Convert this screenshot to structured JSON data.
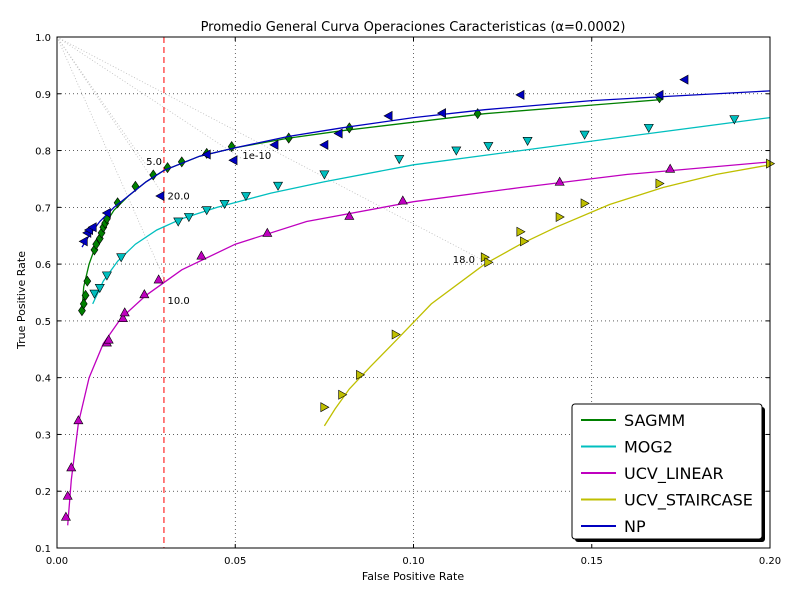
{
  "chart_data": {
    "type": "line",
    "title": "Promedio General Curva Operaciones Caracteristicas (α=0.0002)",
    "xlabel": "False Positive Rate",
    "ylabel": "True Positive Rate",
    "xlim": [
      0.0,
      0.2
    ],
    "ylim": [
      0.1,
      1.0
    ],
    "x_ticks": [
      "0.00",
      "0.05",
      "0.10",
      "0.15",
      "0.20"
    ],
    "y_ticks": [
      "0.1",
      "0.2",
      "0.3",
      "0.4",
      "0.5",
      "0.6",
      "0.7",
      "0.8",
      "0.9",
      "1.0"
    ],
    "grid": true,
    "legend_position": "bottom-right",
    "threshold_line": {
      "x": 0.03,
      "color": "#ff0000",
      "style": "dashed"
    },
    "annotations": [
      {
        "text": "5.0",
        "x": 0.025,
        "y": 0.775
      },
      {
        "text": "1e-10",
        "x": 0.052,
        "y": 0.785
      },
      {
        "text": "20.0",
        "x": 0.031,
        "y": 0.714
      },
      {
        "text": "18.0",
        "x": 0.111,
        "y": 0.602
      },
      {
        "text": "10.0",
        "x": 0.031,
        "y": 0.53
      }
    ],
    "guide_lines": [
      {
        "from": [
          0.0,
          1.0
        ],
        "to": [
          0.052,
          0.785
        ]
      },
      {
        "from": [
          0.0,
          1.0
        ],
        "to": [
          0.03,
          0.72
        ]
      },
      {
        "from": [
          0.0,
          1.0
        ],
        "to": [
          0.12,
          0.605
        ]
      },
      {
        "from": [
          0.0,
          1.0
        ],
        "to": [
          0.03,
          0.575
        ]
      },
      {
        "from": [
          0.0,
          1.0
        ],
        "to": [
          0.025,
          0.775
        ]
      }
    ],
    "series": [
      {
        "name": "SAGMM",
        "color": "#008000",
        "marker": "diamond",
        "curve": [
          [
            0.007,
            0.52
          ],
          [
            0.0075,
            0.56
          ],
          [
            0.009,
            0.6
          ],
          [
            0.011,
            0.635
          ],
          [
            0.013,
            0.665
          ],
          [
            0.016,
            0.695
          ],
          [
            0.02,
            0.72
          ],
          [
            0.025,
            0.745
          ],
          [
            0.03,
            0.765
          ],
          [
            0.04,
            0.79
          ],
          [
            0.05,
            0.805
          ],
          [
            0.065,
            0.822
          ],
          [
            0.08,
            0.835
          ],
          [
            0.1,
            0.85
          ],
          [
            0.12,
            0.865
          ],
          [
            0.15,
            0.88
          ],
          [
            0.17,
            0.89
          ]
        ],
        "points": [
          [
            0.007,
            0.518
          ],
          [
            0.0075,
            0.53
          ],
          [
            0.008,
            0.545
          ],
          [
            0.0085,
            0.57
          ],
          [
            0.0105,
            0.625
          ],
          [
            0.011,
            0.635
          ],
          [
            0.012,
            0.645
          ],
          [
            0.0125,
            0.655
          ],
          [
            0.013,
            0.665
          ],
          [
            0.0135,
            0.672
          ],
          [
            0.014,
            0.68
          ],
          [
            0.017,
            0.708
          ],
          [
            0.022,
            0.737
          ],
          [
            0.027,
            0.757
          ],
          [
            0.031,
            0.77
          ],
          [
            0.035,
            0.78
          ],
          [
            0.042,
            0.795
          ],
          [
            0.049,
            0.807
          ],
          [
            0.065,
            0.822
          ],
          [
            0.082,
            0.84
          ],
          [
            0.118,
            0.865
          ],
          [
            0.169,
            0.893
          ]
        ]
      },
      {
        "name": "MOG2",
        "color": "#00bfbf",
        "marker": "triangle-down",
        "curve": [
          [
            0.01,
            0.53
          ],
          [
            0.013,
            0.57
          ],
          [
            0.017,
            0.605
          ],
          [
            0.022,
            0.635
          ],
          [
            0.028,
            0.66
          ],
          [
            0.035,
            0.68
          ],
          [
            0.045,
            0.7
          ],
          [
            0.06,
            0.725
          ],
          [
            0.075,
            0.745
          ],
          [
            0.1,
            0.775
          ],
          [
            0.13,
            0.8
          ],
          [
            0.16,
            0.825
          ],
          [
            0.2,
            0.858
          ]
        ],
        "points": [
          [
            0.0105,
            0.548
          ],
          [
            0.012,
            0.558
          ],
          [
            0.014,
            0.58
          ],
          [
            0.018,
            0.612
          ],
          [
            0.034,
            0.675
          ],
          [
            0.037,
            0.683
          ],
          [
            0.042,
            0.695
          ],
          [
            0.047,
            0.706
          ],
          [
            0.053,
            0.72
          ],
          [
            0.062,
            0.738
          ],
          [
            0.075,
            0.758
          ],
          [
            0.096,
            0.785
          ],
          [
            0.112,
            0.8
          ],
          [
            0.121,
            0.808
          ],
          [
            0.132,
            0.817
          ],
          [
            0.148,
            0.828
          ],
          [
            0.166,
            0.84
          ],
          [
            0.19,
            0.855
          ]
        ]
      },
      {
        "name": "UCV_LINEAR",
        "color": "#bf00bf",
        "marker": "triangle-up",
        "curve": [
          [
            0.003,
            0.14
          ],
          [
            0.004,
            0.22
          ],
          [
            0.006,
            0.32
          ],
          [
            0.009,
            0.4
          ],
          [
            0.013,
            0.46
          ],
          [
            0.018,
            0.505
          ],
          [
            0.025,
            0.545
          ],
          [
            0.035,
            0.59
          ],
          [
            0.05,
            0.635
          ],
          [
            0.07,
            0.675
          ],
          [
            0.1,
            0.71
          ],
          [
            0.13,
            0.735
          ],
          [
            0.16,
            0.758
          ],
          [
            0.2,
            0.78
          ]
        ],
        "points": [
          [
            0.0025,
            0.155
          ],
          [
            0.003,
            0.192
          ],
          [
            0.004,
            0.242
          ],
          [
            0.006,
            0.325
          ],
          [
            0.014,
            0.462
          ],
          [
            0.0145,
            0.467
          ],
          [
            0.0185,
            0.505
          ],
          [
            0.019,
            0.515
          ],
          [
            0.0245,
            0.547
          ],
          [
            0.0285,
            0.573
          ],
          [
            0.0405,
            0.615
          ],
          [
            0.059,
            0.655
          ],
          [
            0.082,
            0.685
          ],
          [
            0.097,
            0.712
          ],
          [
            0.141,
            0.745
          ],
          [
            0.172,
            0.768
          ]
        ]
      },
      {
        "name": "UCV_STAIRCASE",
        "color": "#bfbf00",
        "marker": "triangle-right",
        "curve": [
          [
            0.075,
            0.315
          ],
          [
            0.078,
            0.345
          ],
          [
            0.082,
            0.38
          ],
          [
            0.088,
            0.42
          ],
          [
            0.095,
            0.465
          ],
          [
            0.105,
            0.53
          ],
          [
            0.12,
            0.6
          ],
          [
            0.13,
            0.635
          ],
          [
            0.14,
            0.665
          ],
          [
            0.155,
            0.705
          ],
          [
            0.17,
            0.735
          ],
          [
            0.185,
            0.758
          ],
          [
            0.2,
            0.775
          ]
        ],
        "points": [
          [
            0.075,
            0.348
          ],
          [
            0.08,
            0.37
          ],
          [
            0.085,
            0.405
          ],
          [
            0.095,
            0.476
          ],
          [
            0.12,
            0.612
          ],
          [
            0.121,
            0.603
          ],
          [
            0.13,
            0.657
          ],
          [
            0.131,
            0.64
          ],
          [
            0.141,
            0.683
          ],
          [
            0.148,
            0.707
          ],
          [
            0.169,
            0.742
          ],
          [
            0.2,
            0.777
          ]
        ]
      },
      {
        "name": "NP",
        "color": "#0000bf",
        "marker": "triangle-left",
        "curve": [
          [
            0.007,
            0.63
          ],
          [
            0.009,
            0.65
          ],
          [
            0.012,
            0.675
          ],
          [
            0.016,
            0.7
          ],
          [
            0.02,
            0.72
          ],
          [
            0.025,
            0.745
          ],
          [
            0.03,
            0.765
          ],
          [
            0.04,
            0.79
          ],
          [
            0.05,
            0.805
          ],
          [
            0.065,
            0.825
          ],
          [
            0.08,
            0.84
          ],
          [
            0.1,
            0.858
          ],
          [
            0.12,
            0.872
          ],
          [
            0.15,
            0.888
          ],
          [
            0.17,
            0.895
          ],
          [
            0.2,
            0.905
          ]
        ],
        "points": [
          [
            0.0075,
            0.64
          ],
          [
            0.0085,
            0.655
          ],
          [
            0.009,
            0.66
          ],
          [
            0.01,
            0.665
          ],
          [
            0.014,
            0.69
          ],
          [
            0.029,
            0.72
          ],
          [
            0.042,
            0.793
          ],
          [
            0.0495,
            0.783
          ],
          [
            0.061,
            0.81
          ],
          [
            0.075,
            0.81
          ],
          [
            0.079,
            0.83
          ],
          [
            0.093,
            0.861
          ],
          [
            0.108,
            0.866
          ],
          [
            0.13,
            0.898
          ],
          [
            0.169,
            0.898
          ],
          [
            0.176,
            0.925
          ]
        ]
      }
    ]
  }
}
